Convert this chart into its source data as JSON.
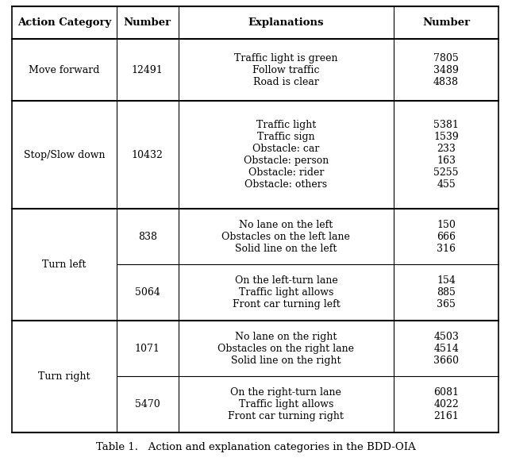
{
  "title": "Table 1.   Action and explanation categories in the BDD-OIA",
  "headers": [
    "Action Category",
    "Number",
    "Explanations",
    "Number"
  ],
  "rows": [
    {
      "action": "Move forward",
      "action_number": "12491",
      "explanations": [
        "Traffic light is green",
        "Follow traffic",
        "Road is clear"
      ],
      "numbers": [
        "7805",
        "3489",
        "4838"
      ],
      "sub_rows": 1
    },
    {
      "action": "Stop/Slow down",
      "action_number": "10432",
      "explanations": [
        "Traffic light",
        "Traffic sign",
        "Obstacle: car",
        "Obstacle: person",
        "Obstacle: rider",
        "Obstacle: others"
      ],
      "numbers": [
        "5381",
        "1539",
        "233",
        "163",
        "5255",
        "455"
      ],
      "sub_rows": 1
    },
    {
      "action": "Turn left",
      "action_number_1": "838",
      "explanations_1": [
        "No lane on the left",
        "Obstacles on the left lane",
        "Solid line on the left"
      ],
      "numbers_1": [
        "150",
        "666",
        "316"
      ],
      "action_number_2": "5064",
      "explanations_2": [
        "On the left-turn lane",
        "Traffic light allows",
        "Front car turning left"
      ],
      "numbers_2": [
        "154",
        "885",
        "365"
      ],
      "sub_rows": 2
    },
    {
      "action": "Turn right",
      "action_number_1": "1071",
      "explanations_1": [
        "No lane on the right",
        "Obstacles on the right lane",
        "Solid line on the right"
      ],
      "numbers_1": [
        "4503",
        "4514",
        "3660"
      ],
      "action_number_2": "5470",
      "explanations_2": [
        "On the right-turn lane",
        "Traffic light allows",
        "Front car turning right"
      ],
      "numbers_2": [
        "6081",
        "4022",
        "2161"
      ],
      "sub_rows": 2
    }
  ],
  "background_color": "#ffffff",
  "header_fontsize": 9.5,
  "cell_fontsize": 9.0,
  "caption_fontsize": 9.5
}
